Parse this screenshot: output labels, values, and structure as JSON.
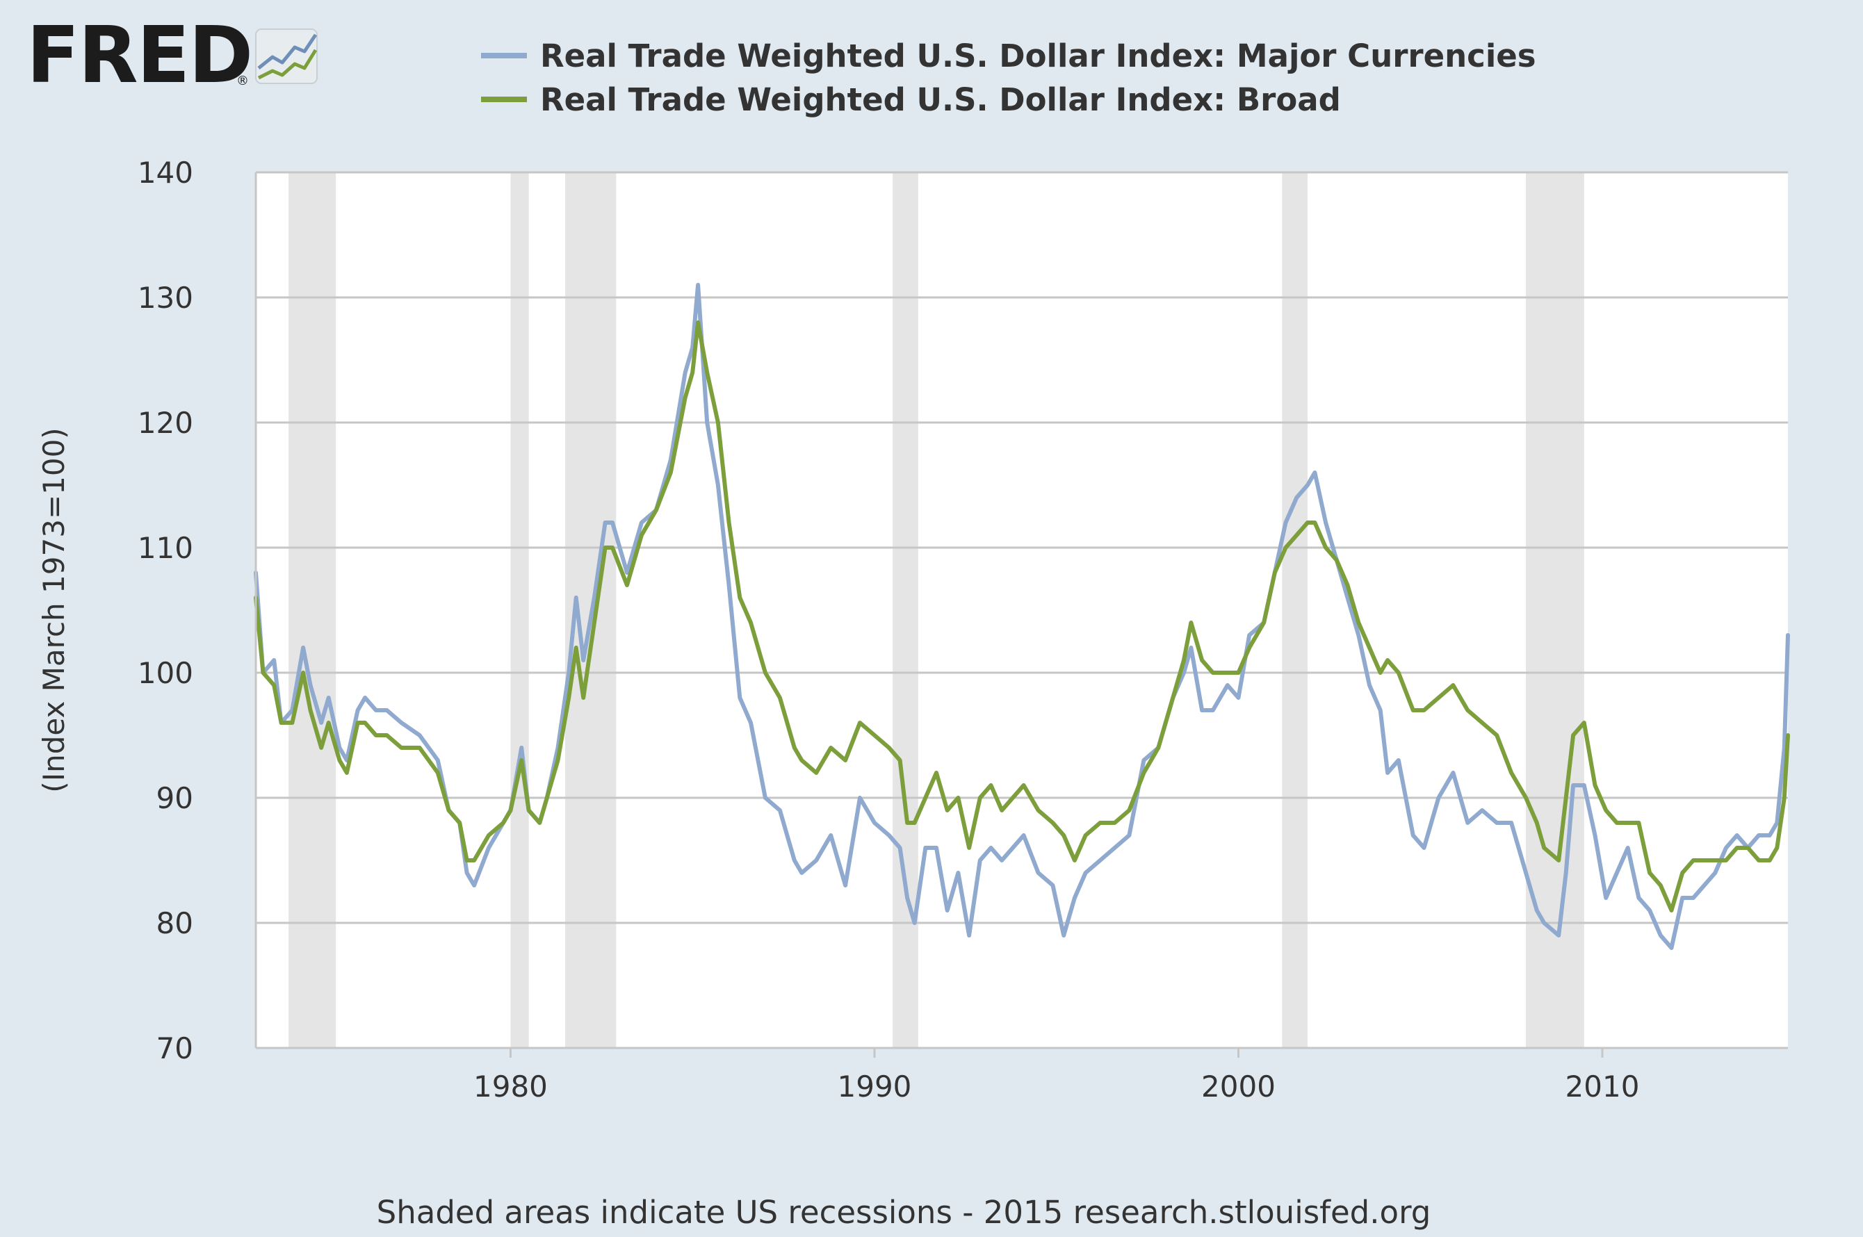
{
  "logo": {
    "text": "FRED",
    "registered": "®"
  },
  "footer": "Shaded areas indicate US recessions - 2015 research.stlouisfed.org",
  "chart_data": {
    "type": "line",
    "title": "",
    "xlabel": "",
    "ylabel": "(Index March 1973=100)",
    "xlim": [
      1973.0,
      2015.1
    ],
    "ylim": [
      70,
      140
    ],
    "yticks": [
      70,
      80,
      90,
      100,
      110,
      120,
      130,
      140
    ],
    "xticks": [
      1980,
      1990,
      2000,
      2010
    ],
    "ytick_labels": [
      "70",
      "80",
      "90",
      "100",
      "110",
      "120",
      "130",
      "140"
    ],
    "xtick_labels": [
      "1980",
      "1990",
      "2000",
      "2010"
    ],
    "grid": true,
    "legend_position": "top",
    "recessions": [
      [
        1973.9,
        1975.2
      ],
      [
        1980.0,
        1980.5
      ],
      [
        1981.5,
        1982.9
      ],
      [
        1990.5,
        1991.2
      ],
      [
        2001.2,
        2001.9
      ],
      [
        2007.9,
        2009.5
      ]
    ],
    "series": [
      {
        "name": "Real Trade Weighted U.S. Dollar Index: Major Currencies",
        "color": "#8fa9cf",
        "x": [
          1973.0,
          1973.2,
          1973.5,
          1973.7,
          1974.0,
          1974.3,
          1974.5,
          1974.8,
          1975.0,
          1975.3,
          1975.5,
          1975.8,
          1976.0,
          1976.3,
          1976.6,
          1977.0,
          1977.5,
          1978.0,
          1978.3,
          1978.6,
          1978.8,
          1979.0,
          1979.4,
          1979.8,
          1980.0,
          1980.3,
          1980.5,
          1980.8,
          1981.0,
          1981.3,
          1981.6,
          1981.8,
          1982.0,
          1982.3,
          1982.6,
          1982.8,
          1983.2,
          1983.6,
          1984.0,
          1984.4,
          1984.8,
          1985.0,
          1985.15,
          1985.4,
          1985.7,
          1986.0,
          1986.3,
          1986.6,
          1987.0,
          1987.4,
          1987.8,
          1988.0,
          1988.4,
          1988.8,
          1989.2,
          1989.6,
          1990.0,
          1990.4,
          1990.7,
          1990.9,
          1991.1,
          1991.4,
          1991.7,
          1992.0,
          1992.3,
          1992.6,
          1992.9,
          1993.2,
          1993.5,
          1993.8,
          1994.1,
          1994.5,
          1994.9,
          1995.2,
          1995.5,
          1995.8,
          1996.2,
          1996.6,
          1997.0,
          1997.4,
          1997.8,
          1998.2,
          1998.5,
          1998.7,
          1999.0,
          1999.3,
          1999.7,
          2000.0,
          2000.3,
          2000.7,
          2001.0,
          2001.3,
          2001.6,
          2001.9,
          2002.1,
          2002.4,
          2002.7,
          2003.0,
          2003.3,
          2003.6,
          2003.9,
          2004.1,
          2004.4,
          2004.8,
          2005.1,
          2005.5,
          2005.9,
          2006.3,
          2006.7,
          2007.1,
          2007.5,
          2007.9,
          2008.2,
          2008.4,
          2008.8,
          2009.0,
          2009.2,
          2009.5,
          2009.8,
          2010.1,
          2010.4,
          2010.7,
          2011.0,
          2011.3,
          2011.6,
          2011.9,
          2012.2,
          2012.5,
          2012.8,
          2013.1,
          2013.4,
          2013.7,
          2014.0,
          2014.3,
          2014.6,
          2014.8,
          2015.0,
          2015.1
        ],
        "values": [
          108,
          100,
          101,
          96,
          97,
          102,
          99,
          96,
          98,
          94,
          93,
          97,
          98,
          97,
          97,
          96,
          95,
          93,
          89,
          88,
          84,
          83,
          86,
          88,
          89,
          94,
          89,
          88,
          90,
          94,
          100,
          106,
          101,
          106,
          112,
          112,
          108,
          112,
          113,
          117,
          124,
          126,
          131,
          120,
          115,
          107,
          98,
          96,
          90,
          89,
          85,
          84,
          85,
          87,
          83,
          90,
          88,
          87,
          86,
          82,
          80,
          86,
          86,
          81,
          84,
          79,
          85,
          86,
          85,
          86,
          87,
          84,
          83,
          79,
          82,
          84,
          85,
          86,
          87,
          93,
          94,
          98,
          100,
          102,
          97,
          97,
          99,
          98,
          103,
          104,
          108,
          112,
          114,
          115,
          116,
          112,
          109,
          106,
          103,
          99,
          97,
          92,
          93,
          87,
          86,
          90,
          92,
          88,
          89,
          88,
          88,
          84,
          81,
          80,
          79,
          84,
          91,
          91,
          87,
          82,
          84,
          86,
          82,
          81,
          79,
          78,
          82,
          82,
          83,
          84,
          86,
          87,
          86,
          87,
          87,
          88,
          94,
          103
        ]
      },
      {
        "name": "Real Trade Weighted U.S. Dollar Index: Broad",
        "color": "#7c9f3c",
        "x": [
          1973.0,
          1973.2,
          1973.5,
          1973.7,
          1974.0,
          1974.3,
          1974.5,
          1974.8,
          1975.0,
          1975.3,
          1975.5,
          1975.8,
          1976.0,
          1976.3,
          1976.6,
          1977.0,
          1977.5,
          1978.0,
          1978.3,
          1978.6,
          1978.8,
          1979.0,
          1979.4,
          1979.8,
          1980.0,
          1980.3,
          1980.5,
          1980.8,
          1981.0,
          1981.3,
          1981.6,
          1981.8,
          1982.0,
          1982.3,
          1982.6,
          1982.8,
          1983.2,
          1983.6,
          1984.0,
          1984.4,
          1984.8,
          1985.0,
          1985.15,
          1985.4,
          1985.7,
          1986.0,
          1986.3,
          1986.6,
          1987.0,
          1987.4,
          1987.8,
          1988.0,
          1988.4,
          1988.8,
          1989.2,
          1989.6,
          1990.0,
          1990.4,
          1990.7,
          1990.9,
          1991.1,
          1991.4,
          1991.7,
          1992.0,
          1992.3,
          1992.6,
          1992.9,
          1993.2,
          1993.5,
          1993.8,
          1994.1,
          1994.5,
          1994.9,
          1995.2,
          1995.5,
          1995.8,
          1996.2,
          1996.6,
          1997.0,
          1997.4,
          1997.8,
          1998.2,
          1998.5,
          1998.7,
          1999.0,
          1999.3,
          1999.7,
          2000.0,
          2000.3,
          2000.7,
          2001.0,
          2001.3,
          2001.6,
          2001.9,
          2002.1,
          2002.4,
          2002.7,
          2003.0,
          2003.3,
          2003.6,
          2003.9,
          2004.1,
          2004.4,
          2004.8,
          2005.1,
          2005.5,
          2005.9,
          2006.3,
          2006.7,
          2007.1,
          2007.5,
          2007.9,
          2008.2,
          2008.4,
          2008.8,
          2009.0,
          2009.2,
          2009.5,
          2009.8,
          2010.1,
          2010.4,
          2010.7,
          2011.0,
          2011.3,
          2011.6,
          2011.9,
          2012.2,
          2012.5,
          2012.8,
          2013.1,
          2013.4,
          2013.7,
          2014.0,
          2014.3,
          2014.6,
          2014.8,
          2015.0,
          2015.1
        ],
        "values": [
          106,
          100,
          99,
          96,
          96,
          100,
          97,
          94,
          96,
          93,
          92,
          96,
          96,
          95,
          95,
          94,
          94,
          92,
          89,
          88,
          85,
          85,
          87,
          88,
          89,
          93,
          89,
          88,
          90,
          93,
          98,
          102,
          98,
          104,
          110,
          110,
          107,
          111,
          113,
          116,
          122,
          124,
          128,
          124,
          120,
          112,
          106,
          104,
          100,
          98,
          94,
          93,
          92,
          94,
          93,
          96,
          95,
          94,
          93,
          88,
          88,
          90,
          92,
          89,
          90,
          86,
          90,
          91,
          89,
          90,
          91,
          89,
          88,
          87,
          85,
          87,
          88,
          88,
          89,
          92,
          94,
          98,
          101,
          104,
          101,
          100,
          100,
          100,
          102,
          104,
          108,
          110,
          111,
          112,
          112,
          110,
          109,
          107,
          104,
          102,
          100,
          101,
          100,
          97,
          97,
          98,
          99,
          97,
          96,
          95,
          92,
          90,
          88,
          86,
          85,
          90,
          95,
          96,
          91,
          89,
          88,
          88,
          88,
          84,
          83,
          81,
          84,
          85,
          85,
          85,
          85,
          86,
          86,
          85,
          85,
          86,
          90,
          95
        ]
      }
    ]
  }
}
